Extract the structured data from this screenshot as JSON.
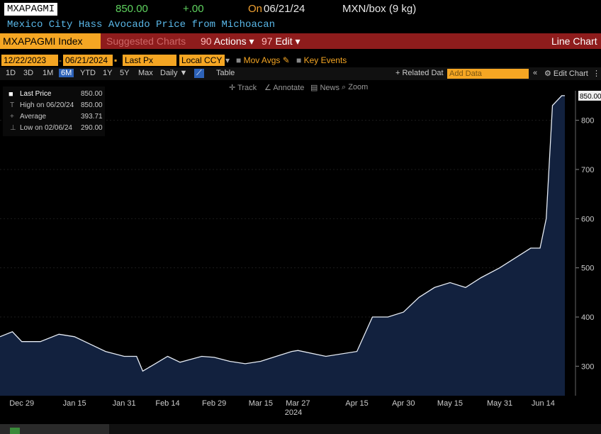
{
  "header": {
    "ticker": "MXAPAGMI",
    "price": "850.00",
    "change": "+.00",
    "date_prefix": "On",
    "date": "06/21/24",
    "units": "MXN/box (9 kg)",
    "description": "Mexico City Hass Avocado Price from Michoacan"
  },
  "command_bar": {
    "security": "MXAPAGMI Index",
    "suggested": "Suggested Charts",
    "actions": "Actions",
    "edit": "Edit",
    "title": "Line Chart"
  },
  "controls": {
    "start_date": "12/22/2023",
    "end_date": "06/21/2024",
    "field": "Last Px",
    "currency": "Local CCY",
    "mov_avgs": "Mov Avgs",
    "key_events": "Key Events"
  },
  "range_tabs": [
    {
      "label": "1D",
      "active": false
    },
    {
      "label": "3D",
      "active": false
    },
    {
      "label": "1M",
      "active": false
    },
    {
      "label": "6M",
      "active": true
    },
    {
      "label": "YTD",
      "active": false
    },
    {
      "label": "1Y",
      "active": false
    },
    {
      "label": "5Y",
      "active": false
    },
    {
      "label": "Max",
      "active": false
    }
  ],
  "toolbar": {
    "frequency": "Daily",
    "table": "Table",
    "related": "Related Dat",
    "add_data_placeholder": "Add Data",
    "edit_chart": "Edit Chart",
    "track": "Track",
    "annotate": "Annotate",
    "news": "News",
    "zoom": "Zoom"
  },
  "legend": {
    "last_label": "Last Price",
    "last_value": "850.00",
    "high_label": "High on 06/20/24",
    "high_value": "850.00",
    "avg_label": "Average",
    "avg_value": "393.71",
    "low_label": "Low on 02/06/24",
    "low_value": "290.00"
  },
  "colors": {
    "background": "#000000",
    "area_fill": "#12213e",
    "line": "#e6ecf5",
    "accent_orange": "#f5a623",
    "bar_red": "#8e1c1c",
    "ticker_green": "#5fd35f",
    "date_orange": "#f0a030",
    "desc_blue": "#59b7e8"
  },
  "chart_data": {
    "type": "area",
    "x_tick_labels": [
      "Dec 29",
      "Jan 15",
      "Jan 31",
      "Feb 14",
      "Feb 29",
      "Mar 15",
      "Mar 27",
      "Apr 15",
      "Apr 30",
      "May 15",
      "May 31",
      "Jun 14"
    ],
    "x_year_label": "2024",
    "y_ticks": [
      300,
      400,
      500,
      600,
      700,
      800
    ],
    "ylim": [
      240,
      860
    ],
    "last_value_label": "850.00",
    "series": [
      {
        "x": [
          "12/22",
          "12/26",
          "12/29",
          "01/04",
          "01/10",
          "01/15",
          "01/20",
          "01/25",
          "01/31",
          "02/04",
          "02/06",
          "02/10",
          "02/14",
          "02/18",
          "02/25",
          "02/29",
          "03/05",
          "03/10",
          "03/15",
          "03/20",
          "03/25",
          "03/27",
          "04/05",
          "04/15",
          "04/20",
          "04/25",
          "04/30",
          "05/05",
          "05/10",
          "05/15",
          "05/20",
          "05/25",
          "05/31",
          "06/05",
          "06/10",
          "06/13",
          "06/15",
          "06/17",
          "06/20",
          "06/21"
        ],
        "values": [
          360,
          370,
          350,
          350,
          365,
          360,
          345,
          330,
          320,
          320,
          290,
          305,
          320,
          308,
          320,
          318,
          310,
          305,
          310,
          320,
          330,
          332,
          320,
          330,
          400,
          400,
          410,
          440,
          460,
          470,
          460,
          480,
          500,
          520,
          540,
          540,
          600,
          830,
          850,
          850
        ]
      }
    ]
  }
}
